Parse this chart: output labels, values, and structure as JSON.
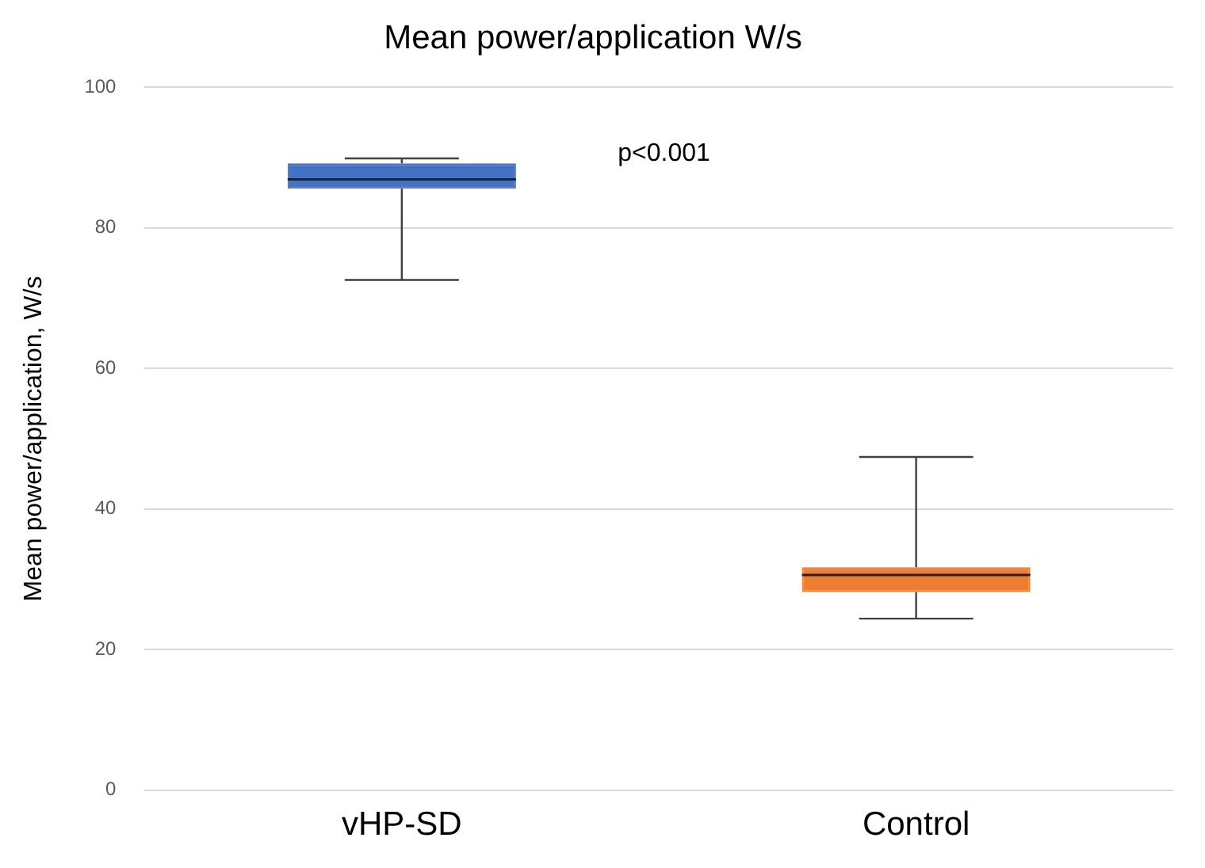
{
  "chart_data": {
    "type": "box",
    "title": "Mean power/application W/s",
    "ylabel": "Mean power/application, W/s",
    "categories": [
      "vHP-SD",
      "Control"
    ],
    "boxes": [
      {
        "low": 72.6,
        "q1": 85.6,
        "median": 86.9,
        "q3": 89.2,
        "high": 89.9
      },
      {
        "low": 24.4,
        "q1": 28.2,
        "median": 30.6,
        "q3": 31.7,
        "high": 47.4
      }
    ],
    "colors": [
      "#4472c4",
      "#ed7d31"
    ],
    "ylim": [
      0,
      100
    ],
    "yticks": [
      0,
      20,
      40,
      60,
      80,
      100
    ],
    "grid": "y",
    "legend": false,
    "annotations": [
      "p<0.001"
    ]
  }
}
